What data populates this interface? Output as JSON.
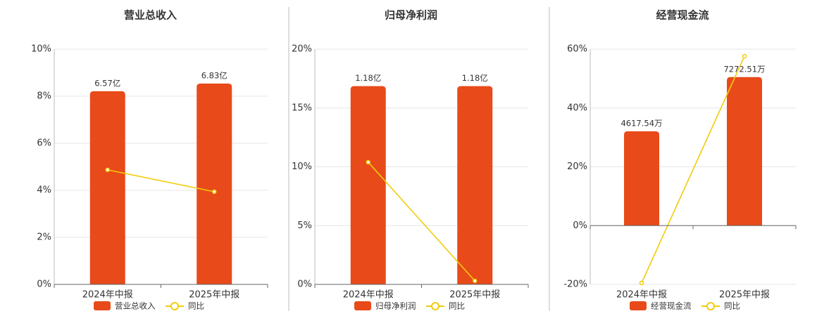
{
  "chart_data": [
    {
      "type": "bar",
      "title": "营业总收入",
      "categories": [
        "2024年中报",
        "2025年中报"
      ],
      "series": [
        {
          "name": "营业总收入",
          "color": "#e84a1a",
          "axis": "y2",
          "values": [
            6.57,
            6.83
          ],
          "value_labels": [
            "6.57亿",
            "6.83亿"
          ]
        },
        {
          "name": "同比",
          "color": "#f2cc0c",
          "type": "line",
          "values": [
            4.87,
            3.94
          ]
        }
      ],
      "ylim": [
        0,
        10
      ],
      "yticks": [
        {
          "value": 0,
          "label": "0%"
        },
        {
          "value": 2,
          "label": "2%"
        },
        {
          "value": 4,
          "label": "4%"
        },
        {
          "value": 6,
          "label": "6%"
        },
        {
          "value": 8,
          "label": "8%"
        },
        {
          "value": 10,
          "label": "10%"
        }
      ],
      "y2lim": [
        0,
        8
      ],
      "grid": true
    },
    {
      "type": "bar",
      "title": "归母净利润",
      "categories": [
        "2024年中报",
        "2025年中报"
      ],
      "series": [
        {
          "name": "归母净利润",
          "color": "#e84a1a",
          "axis": "y2",
          "values": [
            1.18,
            1.18
          ],
          "value_labels": [
            "1.18亿",
            "1.18亿"
          ]
        },
        {
          "name": "同比",
          "color": "#f2cc0c",
          "type": "line",
          "values": [
            10.39,
            0.3
          ]
        }
      ],
      "ylim": [
        0,
        20
      ],
      "yticks": [
        {
          "value": 0,
          "label": "0%"
        },
        {
          "value": 5,
          "label": "5%"
        },
        {
          "value": 10,
          "label": "10%"
        },
        {
          "value": 15,
          "label": "15%"
        },
        {
          "value": 20,
          "label": "20%"
        }
      ],
      "y2lim": [
        0,
        1.4
      ],
      "grid": true
    },
    {
      "type": "bar",
      "title": "经营现金流",
      "categories": [
        "2024年中报",
        "2025年中报"
      ],
      "series": [
        {
          "name": "经营现金流",
          "color": "#e84a1a",
          "axis": "y2",
          "values": [
            4617.54,
            7272.51
          ],
          "value_labels": [
            "4617.54万",
            "7272.51万"
          ]
        },
        {
          "name": "同比",
          "color": "#f2cc0c",
          "type": "line",
          "values": [
            -19.5,
            57.6
          ]
        }
      ],
      "ylim": [
        -20,
        60
      ],
      "yticks": [
        {
          "value": -20,
          "label": "-20%"
        },
        {
          "value": 0,
          "label": "0%"
        },
        {
          "value": 20,
          "label": "20%"
        },
        {
          "value": 40,
          "label": "40%"
        },
        {
          "value": 60,
          "label": "60%"
        }
      ],
      "y2lim": [
        -2880,
        8640
      ],
      "grid": true
    }
  ]
}
